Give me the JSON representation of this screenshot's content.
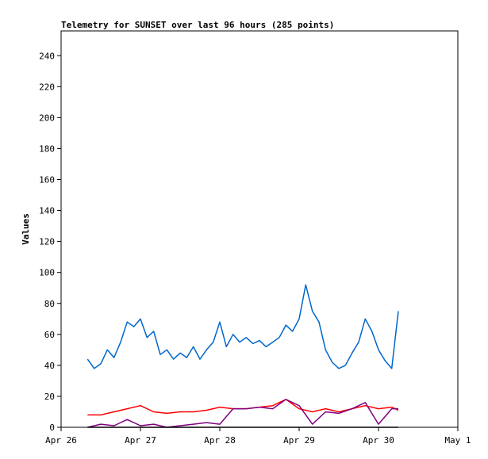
{
  "chart_data": {
    "type": "line",
    "title": "Telemetry for SUNSET over last 96 hours (285 points)",
    "xlabel": "",
    "ylabel": "Values",
    "x_ticks": [
      "Apr 26",
      "Apr 27",
      "Apr 28",
      "Apr 29",
      "Apr 30",
      "May 1"
    ],
    "y_ticks": [
      0,
      20,
      40,
      60,
      80,
      100,
      120,
      140,
      160,
      180,
      200,
      220,
      240
    ],
    "xlim": [
      "2024-04-26T00:00",
      "2024-05-01T00:00"
    ],
    "ylim": [
      0,
      256
    ],
    "grid": false,
    "legend": "none",
    "series": [
      {
        "color": "#0066cc",
        "x": [
          "2024-04-26T08:00",
          "2024-04-26T10:00",
          "2024-04-26T12:00",
          "2024-04-26T14:00",
          "2024-04-26T16:00",
          "2024-04-26T18:00",
          "2024-04-26T20:00",
          "2024-04-26T22:00",
          "2024-04-27T00:00",
          "2024-04-27T02:00",
          "2024-04-27T04:00",
          "2024-04-27T06:00",
          "2024-04-27T08:00",
          "2024-04-27T10:00",
          "2024-04-27T12:00",
          "2024-04-27T14:00",
          "2024-04-27T16:00",
          "2024-04-27T18:00",
          "2024-04-27T20:00",
          "2024-04-27T22:00",
          "2024-04-28T00:00",
          "2024-04-28T02:00",
          "2024-04-28T04:00",
          "2024-04-28T06:00",
          "2024-04-28T08:00",
          "2024-04-28T10:00",
          "2024-04-28T12:00",
          "2024-04-28T14:00",
          "2024-04-28T16:00",
          "2024-04-28T18:00",
          "2024-04-28T20:00",
          "2024-04-28T22:00",
          "2024-04-29T00:00",
          "2024-04-29T02:00",
          "2024-04-29T04:00",
          "2024-04-29T06:00",
          "2024-04-29T08:00",
          "2024-04-29T10:00",
          "2024-04-29T12:00",
          "2024-04-29T14:00",
          "2024-04-29T16:00",
          "2024-04-29T18:00",
          "2024-04-29T20:00",
          "2024-04-29T22:00",
          "2024-04-30T00:00",
          "2024-04-30T02:00",
          "2024-04-30T04:00",
          "2024-04-30T06:00"
        ],
        "values": [
          44,
          38,
          41,
          50,
          45,
          55,
          68,
          65,
          70,
          58,
          62,
          47,
          50,
          44,
          48,
          45,
          52,
          44,
          50,
          55,
          68,
          52,
          60,
          55,
          58,
          54,
          56,
          52,
          55,
          58,
          66,
          62,
          70,
          92,
          75,
          68,
          50,
          42,
          38,
          40,
          48,
          55,
          70,
          62,
          50,
          43,
          38,
          75
        ]
      },
      {
        "color": "#ff0000",
        "x": [
          "2024-04-26T08:00",
          "2024-04-26T12:00",
          "2024-04-26T16:00",
          "2024-04-26T20:00",
          "2024-04-27T00:00",
          "2024-04-27T04:00",
          "2024-04-27T08:00",
          "2024-04-27T12:00",
          "2024-04-27T16:00",
          "2024-04-27T20:00",
          "2024-04-28T00:00",
          "2024-04-28T04:00",
          "2024-04-28T08:00",
          "2024-04-28T12:00",
          "2024-04-28T16:00",
          "2024-04-28T20:00",
          "2024-04-29T00:00",
          "2024-04-29T04:00",
          "2024-04-29T08:00",
          "2024-04-29T12:00",
          "2024-04-29T16:00",
          "2024-04-29T20:00",
          "2024-04-30T00:00",
          "2024-04-30T04:00",
          "2024-04-30T06:00"
        ],
        "values": [
          8,
          8,
          10,
          12,
          14,
          10,
          9,
          10,
          10,
          11,
          13,
          12,
          12,
          13,
          14,
          18,
          12,
          10,
          12,
          10,
          12,
          14,
          12,
          13,
          11
        ]
      },
      {
        "color": "#800080",
        "x": [
          "2024-04-26T08:00",
          "2024-04-26T12:00",
          "2024-04-26T16:00",
          "2024-04-26T20:00",
          "2024-04-27T00:00",
          "2024-04-27T04:00",
          "2024-04-27T08:00",
          "2024-04-27T12:00",
          "2024-04-27T16:00",
          "2024-04-27T20:00",
          "2024-04-28T00:00",
          "2024-04-28T04:00",
          "2024-04-28T08:00",
          "2024-04-28T12:00",
          "2024-04-28T16:00",
          "2024-04-28T20:00",
          "2024-04-29T00:00",
          "2024-04-29T04:00",
          "2024-04-29T08:00",
          "2024-04-29T12:00",
          "2024-04-29T16:00",
          "2024-04-29T20:00",
          "2024-04-30T00:00",
          "2024-04-30T04:00",
          "2024-04-30T06:00"
        ],
        "values": [
          0,
          2,
          1,
          5,
          1,
          2,
          0,
          1,
          2,
          3,
          2,
          12,
          12,
          13,
          12,
          18,
          14,
          2,
          10,
          9,
          12,
          16,
          2,
          12,
          12
        ]
      },
      {
        "color": "#000000",
        "x": [
          "2024-04-26T08:00",
          "2024-04-30T06:00"
        ],
        "values": [
          0,
          0
        ]
      }
    ]
  }
}
